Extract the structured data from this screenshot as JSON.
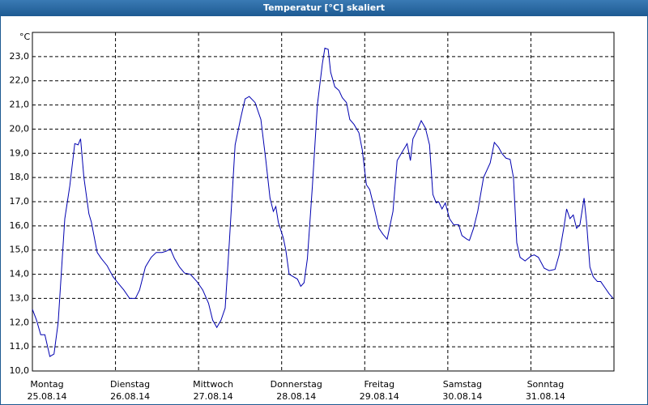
{
  "chart_data": {
    "type": "line",
    "title": "Temperatur [°C] skaliert",
    "y_unit": "°C",
    "color": "#0000b0",
    "grid": true,
    "xlim": [
      0,
      7
    ],
    "xticks": [
      {
        "value": 0,
        "label": "Montag",
        "date": "25.08.14"
      },
      {
        "value": 1,
        "label": "Dienstag",
        "date": "26.08.14"
      },
      {
        "value": 2,
        "label": "Mittwoch",
        "date": "27.08.14"
      },
      {
        "value": 3,
        "label": "Donnerstag",
        "date": "28.08.14"
      },
      {
        "value": 4,
        "label": "Freitag",
        "date": "29.08.14"
      },
      {
        "value": 5,
        "label": "Samstag",
        "date": "30.08.14"
      },
      {
        "value": 6,
        "label": "Sonntag",
        "date": "31.08.14"
      }
    ],
    "ylim": [
      10,
      24
    ],
    "yticks": [
      {
        "value": 10,
        "label": "10,0"
      },
      {
        "value": 11,
        "label": "11,0"
      },
      {
        "value": 12,
        "label": "12,0"
      },
      {
        "value": 13,
        "label": "13,0"
      },
      {
        "value": 14,
        "label": "14,0"
      },
      {
        "value": 15,
        "label": "15,0"
      },
      {
        "value": 16,
        "label": "16,0"
      },
      {
        "value": 17,
        "label": "17,0"
      },
      {
        "value": 18,
        "label": "18,0"
      },
      {
        "value": 19,
        "label": "19,0"
      },
      {
        "value": 20,
        "label": "20,0"
      },
      {
        "value": 21,
        "label": "21,0"
      },
      {
        "value": 22,
        "label": "22,0"
      },
      {
        "value": 23,
        "label": "23,0"
      }
    ],
    "x": [
      0,
      0.05,
      0.1,
      0.15,
      0.21,
      0.26,
      0.31,
      0.39,
      0.45,
      0.51,
      0.55,
      0.58,
      0.62,
      0.68,
      0.71,
      0.78,
      0.83,
      0.9,
      0.97,
      1.04,
      1.1,
      1.17,
      1.24,
      1.29,
      1.36,
      1.43,
      1.49,
      1.56,
      1.61,
      1.66,
      1.71,
      1.77,
      1.83,
      1.9,
      1.98,
      2.05,
      2.12,
      2.17,
      2.22,
      2.27,
      2.32,
      2.37,
      2.44,
      2.51,
      2.56,
      2.61,
      2.68,
      2.75,
      2.81,
      2.86,
      2.9,
      2.93,
      2.96,
      3.02,
      3.05,
      3.09,
      3.14,
      3.19,
      3.23,
      3.27,
      3.31,
      3.37,
      3.43,
      3.49,
      3.52,
      3.56,
      3.59,
      3.64,
      3.69,
      3.73,
      3.78,
      3.82,
      3.87,
      3.93,
      3.97,
      4.02,
      4.06,
      4.11,
      4.17,
      4.22,
      4.27,
      4.34,
      4.39,
      4.45,
      4.51,
      4.55,
      4.58,
      4.63,
      4.68,
      4.73,
      4.78,
      4.82,
      4.86,
      4.89,
      4.93,
      4.97,
      5.02,
      5.07,
      5.13,
      5.17,
      5.23,
      5.26,
      5.31,
      5.36,
      5.43,
      5.51,
      5.56,
      5.61,
      5.65,
      5.7,
      5.75,
      5.79,
      5.83,
      5.87,
      5.93,
      6.0,
      6.04,
      6.09,
      6.16,
      6.22,
      6.29,
      6.34,
      6.4,
      6.43,
      6.47,
      6.51,
      6.55,
      6.59,
      6.64,
      6.67,
      6.71,
      6.75,
      6.8,
      6.84,
      6.89,
      6.94,
      6.99
    ],
    "values": [
      12.55,
      12.1,
      11.5,
      11.5,
      10.6,
      10.7,
      12.0,
      16.3,
      17.65,
      19.4,
      19.35,
      19.6,
      18.0,
      16.5,
      16.15,
      14.9,
      14.65,
      14.35,
      13.9,
      13.6,
      13.35,
      13.0,
      13.0,
      13.35,
      14.3,
      14.7,
      14.9,
      14.9,
      14.95,
      15.05,
      14.65,
      14.3,
      14.05,
      14.0,
      13.7,
      13.35,
      12.8,
      12.1,
      11.8,
      12.1,
      12.6,
      15.3,
      19.35,
      20.5,
      21.25,
      21.35,
      21.1,
      20.4,
      18.7,
      17.15,
      16.6,
      16.8,
      16.15,
      15.5,
      15.0,
      14.0,
      13.9,
      13.8,
      13.5,
      13.65,
      14.65,
      17.65,
      21.0,
      22.7,
      23.35,
      23.3,
      22.35,
      21.75,
      21.6,
      21.3,
      21.1,
      20.4,
      20.2,
      19.85,
      19.15,
      17.7,
      17.5,
      16.8,
      15.9,
      15.65,
      15.45,
      16.6,
      18.7,
      19.05,
      19.4,
      18.7,
      19.6,
      19.95,
      20.35,
      20.05,
      19.35,
      17.3,
      16.95,
      17.0,
      16.7,
      16.95,
      16.3,
      16.05,
      16.05,
      15.6,
      15.45,
      15.4,
      15.9,
      16.6,
      18.0,
      18.6,
      19.45,
      19.25,
      19.0,
      18.8,
      18.75,
      18.0,
      15.3,
      14.7,
      14.55,
      14.75,
      14.8,
      14.7,
      14.25,
      14.15,
      14.2,
      14.8,
      16.0,
      16.7,
      16.3,
      16.45,
      15.9,
      16.05,
      17.15,
      16.15,
      14.3,
      13.9,
      13.7,
      13.7,
      13.45,
      13.2,
      13.0
    ]
  }
}
